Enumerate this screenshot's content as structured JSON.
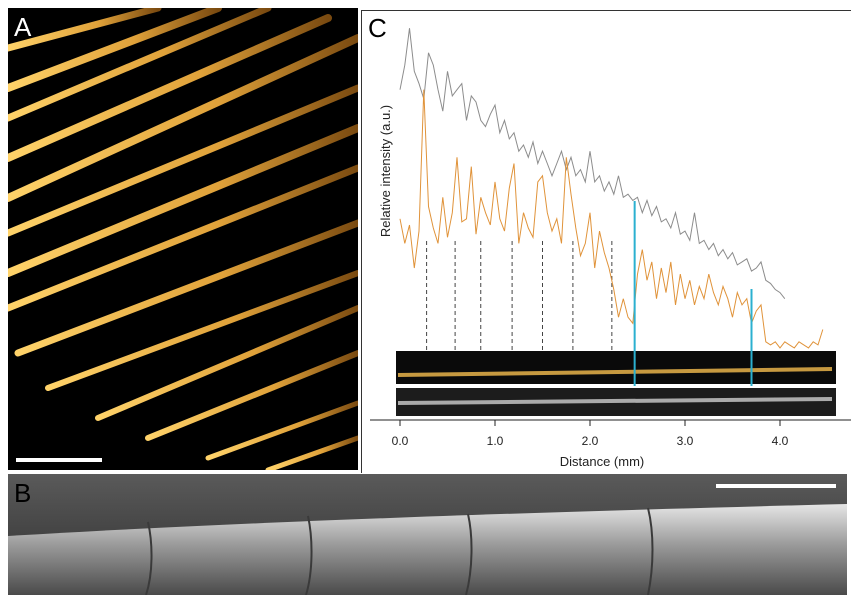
{
  "panels": {
    "a": {
      "letter": "A"
    },
    "b": {
      "letter": "B"
    },
    "c": {
      "letter": "C"
    }
  },
  "chart_data": {
    "type": "line",
    "xlabel": "Distance (mm)",
    "ylabel": "Relative intensity (a.u.)",
    "xlim": [
      -0.1,
      4.6
    ],
    "x_ticks": [
      "0.0",
      "1.0",
      "2.0",
      "3.0",
      "4.0"
    ],
    "series": [
      {
        "color": "#8c8c8c",
        "x": [
          0.0,
          0.05,
          0.1,
          0.15,
          0.2,
          0.25,
          0.3,
          0.35,
          0.4,
          0.45,
          0.5,
          0.55,
          0.6,
          0.65,
          0.7,
          0.75,
          0.8,
          0.85,
          0.9,
          0.95,
          1.0,
          1.05,
          1.1,
          1.15,
          1.2,
          1.25,
          1.3,
          1.35,
          1.4,
          1.45,
          1.5,
          1.55,
          1.6,
          1.65,
          1.7,
          1.75,
          1.8,
          1.85,
          1.9,
          1.95,
          2.0,
          2.05,
          2.1,
          2.15,
          2.2,
          2.25,
          2.3,
          2.35,
          2.4,
          2.45,
          2.5,
          2.55,
          2.6,
          2.65,
          2.7,
          2.75,
          2.8,
          2.85,
          2.9,
          2.95,
          3.0,
          3.05,
          3.1,
          3.15,
          3.2,
          3.25,
          3.3,
          3.35,
          3.4,
          3.45,
          3.5,
          3.55,
          3.6,
          3.65,
          3.7,
          3.75,
          3.8,
          3.85,
          3.9,
          3.95,
          4.0,
          4.05
        ],
        "y": [
          0.8,
          0.88,
          1.0,
          0.86,
          0.82,
          0.77,
          0.92,
          0.88,
          0.8,
          0.73,
          0.86,
          0.78,
          0.8,
          0.82,
          0.7,
          0.78,
          0.76,
          0.7,
          0.68,
          0.72,
          0.75,
          0.66,
          0.7,
          0.64,
          0.66,
          0.6,
          0.62,
          0.58,
          0.63,
          0.56,
          0.6,
          0.56,
          0.52,
          0.56,
          0.6,
          0.54,
          0.58,
          0.52,
          0.54,
          0.5,
          0.6,
          0.5,
          0.52,
          0.47,
          0.5,
          0.46,
          0.52,
          0.45,
          0.46,
          0.44,
          0.45,
          0.4,
          0.44,
          0.39,
          0.42,
          0.37,
          0.38,
          0.35,
          0.4,
          0.33,
          0.34,
          0.31,
          0.4,
          0.3,
          0.31,
          0.28,
          0.3,
          0.26,
          0.28,
          0.25,
          0.27,
          0.23,
          0.24,
          0.25,
          0.21,
          0.22,
          0.24,
          0.18,
          0.17,
          0.15,
          0.14,
          0.12
        ]
      },
      {
        "color": "#e0933a",
        "x": [
          0.0,
          0.05,
          0.1,
          0.15,
          0.2,
          0.25,
          0.3,
          0.35,
          0.4,
          0.45,
          0.5,
          0.55,
          0.6,
          0.65,
          0.7,
          0.75,
          0.8,
          0.85,
          0.9,
          0.95,
          1.0,
          1.05,
          1.1,
          1.15,
          1.2,
          1.25,
          1.3,
          1.35,
          1.4,
          1.45,
          1.5,
          1.55,
          1.6,
          1.65,
          1.7,
          1.75,
          1.8,
          1.85,
          1.9,
          1.95,
          2.0,
          2.05,
          2.1,
          2.15,
          2.2,
          2.25,
          2.3,
          2.35,
          2.4,
          2.45,
          2.5,
          2.55,
          2.6,
          2.65,
          2.7,
          2.75,
          2.8,
          2.85,
          2.9,
          2.95,
          3.0,
          3.05,
          3.1,
          3.15,
          3.2,
          3.25,
          3.3,
          3.35,
          3.4,
          3.45,
          3.5,
          3.55,
          3.6,
          3.65,
          3.7,
          3.75,
          3.8,
          3.85,
          3.9,
          3.95,
          4.0,
          4.05,
          4.1,
          4.15,
          4.2,
          4.25,
          4.3,
          4.35,
          4.4,
          4.45
        ],
        "y": [
          0.38,
          0.3,
          0.36,
          0.22,
          0.34,
          0.8,
          0.42,
          0.35,
          0.3,
          0.45,
          0.32,
          0.4,
          0.58,
          0.37,
          0.38,
          0.55,
          0.33,
          0.45,
          0.4,
          0.36,
          0.5,
          0.38,
          0.34,
          0.48,
          0.56,
          0.3,
          0.4,
          0.35,
          0.32,
          0.5,
          0.52,
          0.4,
          0.34,
          0.38,
          0.3,
          0.58,
          0.46,
          0.35,
          0.26,
          0.3,
          0.4,
          0.22,
          0.34,
          0.27,
          0.22,
          0.15,
          0.06,
          0.12,
          0.06,
          0.04,
          0.2,
          0.28,
          0.18,
          0.24,
          0.12,
          0.22,
          0.14,
          0.24,
          0.1,
          0.2,
          0.12,
          0.18,
          0.1,
          0.16,
          0.12,
          0.2,
          0.14,
          0.1,
          0.16,
          0.12,
          0.06,
          0.14,
          0.1,
          0.12,
          0.04,
          0.08,
          0.1,
          -0.02,
          -0.03,
          -0.02,
          -0.04,
          -0.02,
          -0.03,
          -0.04,
          -0.02,
          -0.03,
          -0.04,
          -0.02,
          -0.03,
          0.02
        ]
      }
    ],
    "dashed_markers_x": [
      0.28,
      0.58,
      0.85,
      1.18,
      1.5,
      1.82,
      2.23
    ],
    "cyan_markers_x": [
      2.47,
      3.7
    ],
    "cyan_color": "#2bb0d0"
  }
}
